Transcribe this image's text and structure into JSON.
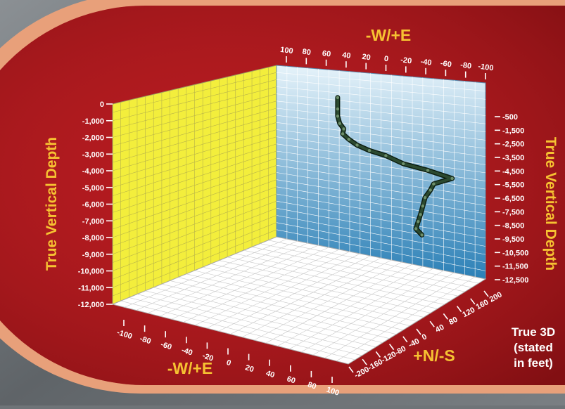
{
  "colors": {
    "panel_red": "#b31a1f",
    "panel_rim": "#e8a07a",
    "label_yellow": "#f6c232",
    "left_wall": "#f3ee3c",
    "back_wall_top": "#e6f3fa",
    "back_wall_bottom": "#2a7fb6",
    "floor": "#ffffff",
    "well_path": "#2c4a30"
  },
  "chart_data": {
    "type": "3d-line",
    "x_axis_top_label": "-W/+E",
    "x_axis_bottom_label": "-W/+E",
    "y_axis_label": "+N/-S",
    "left_z_label": "True Vertical Depth",
    "right_z_label": "True Vertical Depth",
    "note_lines": [
      "True 3D",
      "(stated",
      "in feet)"
    ],
    "top_x_ticks": [
      "100",
      "80",
      "60",
      "40",
      "20",
      "0",
      "-20",
      "-40",
      "-60",
      "-80",
      "-100"
    ],
    "bottom_x_ticks": [
      "-100",
      "-80",
      "-60",
      "-40",
      "-20",
      "0",
      "20",
      "40",
      "60",
      "80",
      "100"
    ],
    "ns_ticks": [
      "-200",
      "-160",
      "-120",
      "-80",
      "-40",
      "0",
      "40",
      "80",
      "120",
      "160",
      "200"
    ],
    "left_depth_ticks": [
      "0",
      "-1,000",
      "-2,000",
      "-3,000",
      "-4,000",
      "-5,000",
      "-6,000",
      "-7,000",
      "-8,000",
      "-9,000",
      "-10,000",
      "-11,000",
      "-12,000"
    ],
    "right_depth_ticks": [
      "-500",
      "-1,500",
      "-2,500",
      "-3,500",
      "-4,500",
      "-5,500",
      "-6,500",
      "-7,500",
      "-8,500",
      "-9,500",
      "-10,500",
      "-11,500",
      "-12,500"
    ],
    "ranges": {
      "x": [
        -100,
        100
      ],
      "y": [
        -200,
        200
      ],
      "z": [
        -12000,
        0
      ]
    },
    "grid": true,
    "well_path": {
      "x": [
        0,
        0,
        0,
        -2,
        -5,
        -3,
        -8,
        -15,
        -25,
        -38,
        -52,
        -70,
        -88,
        -72,
        -68,
        -62,
        -58,
        -54,
        -50,
        -46,
        -50
      ],
      "y": [
        0,
        0,
        0,
        0,
        5,
        10,
        15,
        20,
        30,
        45,
        60,
        90,
        120,
        110,
        115,
        120,
        130,
        140,
        150,
        160,
        170
      ],
      "z": [
        -200,
        -1000,
        -1500,
        -2000,
        -2400,
        -2800,
        -3200,
        -3600,
        -4000,
        -4400,
        -5000,
        -5600,
        -6300,
        -6700,
        -7200,
        -7800,
        -8500,
        -9200,
        -9800,
        -10400,
        -10900
      ]
    }
  }
}
